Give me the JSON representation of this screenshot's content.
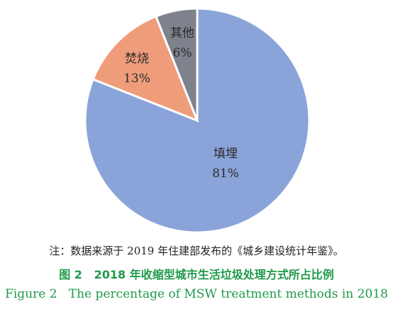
{
  "chart_data": {
    "type": "pie",
    "slices": [
      {
        "label": "填埋",
        "value": 81,
        "value_label": "81%",
        "color": "#8aa4da"
      },
      {
        "label": "焚烧",
        "value": 13,
        "value_label": "13%",
        "color": "#ef9c7b"
      },
      {
        "label": "其他",
        "value": 6,
        "value_label": "6%",
        "color": "#7d828d"
      }
    ],
    "edge_color": "#ffffff",
    "start": "12 o'clock",
    "direction": "clockwise",
    "legend": "none"
  },
  "caption": {
    "note": "注：数据来源于 2019 年住建部发布的《城乡建设统计年鉴》。",
    "figure_number_cn": "图 2",
    "title_cn": "2018 年收缩型城市生活垃圾处理方式所占比例",
    "figure_number_en": "Figure 2",
    "title_en": "The percentage of MSW treatment methods in 2018"
  }
}
